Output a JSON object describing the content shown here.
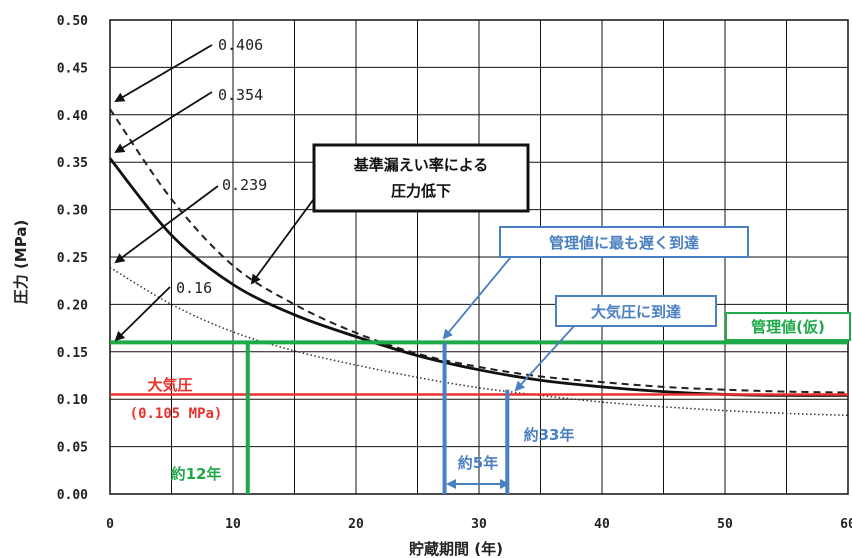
{
  "chart_data": {
    "type": "line",
    "xlabel": "貯蔵期間 (年)",
    "ylabel": "圧力 (MPa)",
    "xlim": [
      0,
      60
    ],
    "ylim": [
      0,
      0.5
    ],
    "x_ticks": [
      "0",
      "10",
      "20",
      "30",
      "40",
      "50",
      "60"
    ],
    "y_ticks": [
      "0.00",
      "0.05",
      "0.10",
      "0.15",
      "0.20",
      "0.25",
      "0.30",
      "0.35",
      "0.40",
      "0.45",
      "0.50"
    ],
    "grid": true,
    "series": [
      {
        "style": "dashed",
        "color": "#222222",
        "x": [
          0,
          5,
          10,
          15,
          20,
          25,
          30,
          35,
          40,
          45,
          50,
          55,
          60
        ],
        "y": [
          0.406,
          0.311,
          0.241,
          0.2,
          0.17,
          0.148,
          0.134,
          0.124,
          0.118,
          0.113,
          0.11,
          0.108,
          0.107
        ]
      },
      {
        "style": "solid",
        "color": "#111111",
        "x": [
          0,
          5,
          10,
          15,
          20,
          25,
          30,
          35,
          40,
          45,
          50,
          55,
          60
        ],
        "y": [
          0.354,
          0.273,
          0.221,
          0.189,
          0.166,
          0.146,
          0.131,
          0.12,
          0.113,
          0.108,
          0.105,
          0.104,
          0.104
        ]
      },
      {
        "style": "dotted",
        "color": "#333333",
        "x": [
          0,
          5,
          10,
          15,
          20,
          25,
          30,
          35,
          40,
          45,
          50,
          55,
          60
        ],
        "y": [
          0.239,
          0.2,
          0.171,
          0.151,
          0.136,
          0.123,
          0.112,
          0.104,
          0.097,
          0.092,
          0.088,
          0.085,
          0.083
        ]
      }
    ],
    "hlines": [
      {
        "y": 0.16,
        "color": "#1faa4a",
        "label": "管理値(仮)"
      },
      {
        "y": 0.105,
        "color": "#e8322e",
        "label": "大気圧",
        "sublabel": "(0.105 MPa)"
      }
    ],
    "vlines": [
      {
        "x": 11.2,
        "y_top": 0.16,
        "color": "#1faa4a",
        "label": "約12年"
      },
      {
        "x": 27.2,
        "y_top": 0.16,
        "color": "#4a7fc1"
      },
      {
        "x": 32.3,
        "y_top": 0.11,
        "color": "#4a7fc1",
        "label": "約33年"
      }
    ],
    "span": {
      "x1": 27.2,
      "x2": 32.3,
      "label": "約5年"
    },
    "annotations": [
      {
        "text": "0.406",
        "value": 0.406
      },
      {
        "text": "0.354",
        "value": 0.354
      },
      {
        "text": "0.239",
        "value": 0.239
      },
      {
        "text": "0.16",
        "value": 0.16
      }
    ],
    "callouts": [
      {
        "line1": "基準漏えい率による",
        "line2": "圧力低下"
      },
      {
        "line1": "管理値に最も遅く到達"
      },
      {
        "line1": "大気圧に到達"
      }
    ]
  }
}
